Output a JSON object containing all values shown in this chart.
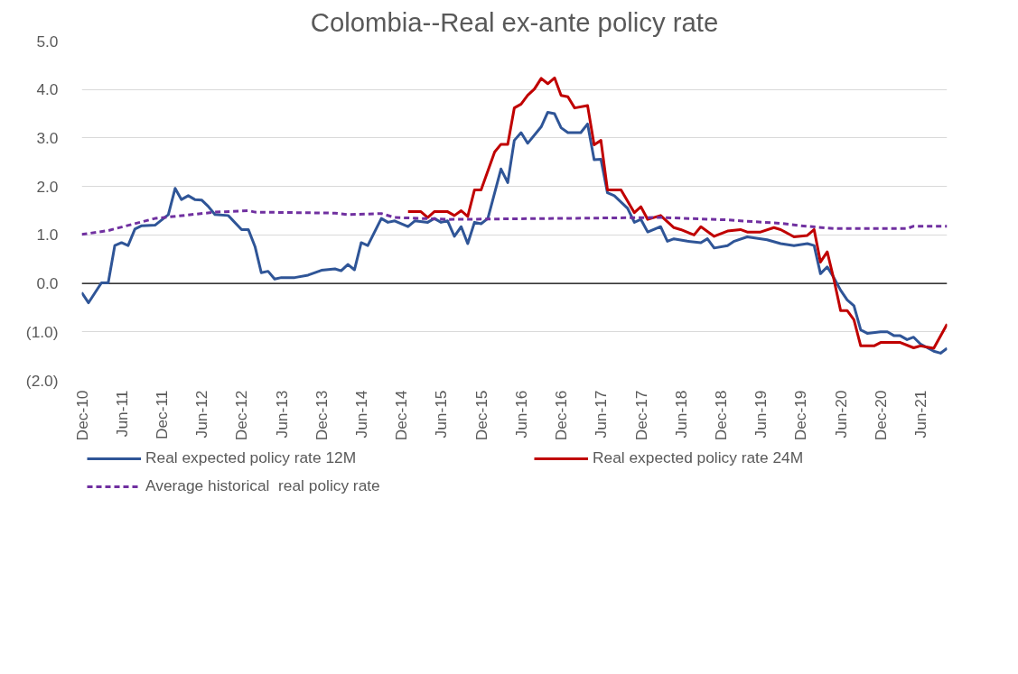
{
  "chart_data": {
    "type": "line",
    "title": "Colombia--Real ex-ante policy rate",
    "xlim": [
      "2010-12",
      "2021-10"
    ],
    "xticks": [
      {
        "value": "2010-12",
        "label": "Dec-10"
      },
      {
        "value": "2011-06",
        "label": "Jun-11"
      },
      {
        "value": "2011-12",
        "label": "Dec-11"
      },
      {
        "value": "2012-06",
        "label": "Jun-12"
      },
      {
        "value": "2012-12",
        "label": "Dec-12"
      },
      {
        "value": "2013-06",
        "label": "Jun-13"
      },
      {
        "value": "2013-12",
        "label": "Dec-13"
      },
      {
        "value": "2014-06",
        "label": "Jun-14"
      },
      {
        "value": "2014-12",
        "label": "Dec-14"
      },
      {
        "value": "2015-06",
        "label": "Jun-15"
      },
      {
        "value": "2015-12",
        "label": "Dec-15"
      },
      {
        "value": "2016-06",
        "label": "Jun-16"
      },
      {
        "value": "2016-12",
        "label": "Dec-16"
      },
      {
        "value": "2017-06",
        "label": "Jun-17"
      },
      {
        "value": "2017-12",
        "label": "Dec-17"
      },
      {
        "value": "2018-06",
        "label": "Jun-18"
      },
      {
        "value": "2018-12",
        "label": "Dec-18"
      },
      {
        "value": "2019-06",
        "label": "Jun-19"
      },
      {
        "value": "2019-12",
        "label": "Dec-19"
      },
      {
        "value": "2020-06",
        "label": "Jun-20"
      },
      {
        "value": "2020-12",
        "label": "Dec-20"
      },
      {
        "value": "2021-06",
        "label": "Jun-21"
      }
    ],
    "ylim": [
      -2,
      5
    ],
    "yticks": [
      {
        "value": -2,
        "label": "(2.0)"
      },
      {
        "value": -1,
        "label": "(1.0)"
      },
      {
        "value": 0,
        "label": "0.0"
      },
      {
        "value": 1,
        "label": "1.0"
      },
      {
        "value": 2,
        "label": "2.0"
      },
      {
        "value": 3,
        "label": "3.0"
      },
      {
        "value": 4,
        "label": "4.0"
      },
      {
        "value": 5,
        "label": "5.0"
      }
    ],
    "grid": "y",
    "legend": "bottom",
    "marker": "none",
    "ref_lines": [
      {
        "axis": "y",
        "value": 0,
        "color": "#000000"
      }
    ],
    "series": [
      {
        "name": "Real expected policy rate 12M",
        "color": "#2f5597",
        "line_style": "solid",
        "x": [
          "2010-12",
          "2011-01",
          "2011-03",
          "2011-04",
          "2011-05",
          "2011-06",
          "2011-07",
          "2011-08",
          "2011-09",
          "2011-11",
          "2012-01",
          "2012-02",
          "2012-03",
          "2012-04",
          "2012-05",
          "2012-06",
          "2012-07",
          "2012-08",
          "2012-10",
          "2012-12",
          "2013-01",
          "2013-02",
          "2013-03",
          "2013-04",
          "2013-05",
          "2013-06",
          "2013-08",
          "2013-10",
          "2013-12",
          "2014-02",
          "2014-03",
          "2014-04",
          "2014-05",
          "2014-06",
          "2014-07",
          "2014-09",
          "2014-10",
          "2014-11",
          "2015-01",
          "2015-02",
          "2015-04",
          "2015-05",
          "2015-06",
          "2015-07",
          "2015-08",
          "2015-09",
          "2015-10",
          "2015-11",
          "2015-12",
          "2016-01",
          "2016-03",
          "2016-04",
          "2016-05",
          "2016-06",
          "2016-07",
          "2016-09",
          "2016-10",
          "2016-11",
          "2016-12",
          "2017-01",
          "2017-03",
          "2017-04",
          "2017-05",
          "2017-06",
          "2017-07",
          "2017-08",
          "2017-10",
          "2017-11",
          "2017-12",
          "2018-01",
          "2018-03",
          "2018-04",
          "2018-05",
          "2018-07",
          "2018-09",
          "2018-10",
          "2018-11",
          "2019-01",
          "2019-02",
          "2019-04",
          "2019-07",
          "2019-09",
          "2019-11",
          "2020-01",
          "2020-02",
          "2020-03",
          "2020-04",
          "2020-05",
          "2020-06",
          "2020-07",
          "2020-08",
          "2020-09",
          "2020-10",
          "2020-12",
          "2021-01",
          "2021-02",
          "2021-03",
          "2021-04",
          "2021-05",
          "2021-06",
          "2021-08",
          "2021-09",
          "2021-10"
        ],
        "values": [
          -0.19,
          -0.4,
          0.01,
          0.01,
          0.78,
          0.84,
          0.78,
          1.12,
          1.19,
          1.2,
          1.42,
          1.96,
          1.73,
          1.81,
          1.73,
          1.72,
          1.59,
          1.42,
          1.4,
          1.11,
          1.11,
          0.75,
          0.22,
          0.25,
          0.09,
          0.12,
          0.12,
          0.17,
          0.27,
          0.3,
          0.26,
          0.39,
          0.28,
          0.84,
          0.78,
          1.34,
          1.26,
          1.29,
          1.17,
          1.29,
          1.26,
          1.34,
          1.26,
          1.29,
          0.97,
          1.17,
          0.82,
          1.26,
          1.23,
          1.34,
          2.36,
          2.08,
          2.95,
          3.11,
          2.89,
          3.23,
          3.53,
          3.5,
          3.21,
          3.11,
          3.11,
          3.29,
          2.55,
          2.56,
          1.87,
          1.81,
          1.55,
          1.26,
          1.32,
          1.06,
          1.17,
          0.87,
          0.92,
          0.87,
          0.84,
          0.92,
          0.73,
          0.78,
          0.87,
          0.96,
          0.9,
          0.82,
          0.78,
          0.82,
          0.78,
          0.2,
          0.34,
          0.12,
          -0.14,
          -0.34,
          -0.46,
          -0.96,
          -1.03,
          -1.0,
          -1.0,
          -1.08,
          -1.08,
          -1.16,
          -1.11,
          -1.25,
          -1.4,
          -1.44,
          -1.34
        ]
      },
      {
        "name": "Real expected policy rate 24M",
        "color": "#c00000",
        "line_style": "solid",
        "x": [
          "2015-01",
          "2015-03",
          "2015-04",
          "2015-05",
          "2015-07",
          "2015-08",
          "2015-09",
          "2015-10",
          "2015-11",
          "2015-12",
          "2016-02",
          "2016-03",
          "2016-04",
          "2016-05",
          "2016-06",
          "2016-07",
          "2016-08",
          "2016-09",
          "2016-10",
          "2016-11",
          "2016-12",
          "2017-01",
          "2017-02",
          "2017-04",
          "2017-05",
          "2017-06",
          "2017-07",
          "2017-09",
          "2017-11",
          "2017-12",
          "2018-01",
          "2018-03",
          "2018-05",
          "2018-06",
          "2018-08",
          "2018-09",
          "2018-11",
          "2019-01",
          "2019-03",
          "2019-04",
          "2019-06",
          "2019-08",
          "2019-09",
          "2019-11",
          "2020-01",
          "2020-02",
          "2020-03",
          "2020-04",
          "2020-05",
          "2020-06",
          "2020-07",
          "2020-08",
          "2020-09",
          "2020-11",
          "2020-12",
          "2021-03",
          "2021-05",
          "2021-06",
          "2021-08",
          "2021-10"
        ],
        "values": [
          1.48,
          1.48,
          1.36,
          1.48,
          1.48,
          1.4,
          1.5,
          1.38,
          1.93,
          1.93,
          2.71,
          2.87,
          2.87,
          3.62,
          3.7,
          3.88,
          4.01,
          4.23,
          4.12,
          4.24,
          3.88,
          3.85,
          3.62,
          3.67,
          2.86,
          2.95,
          1.93,
          1.93,
          1.46,
          1.58,
          1.32,
          1.4,
          1.15,
          1.11,
          1.0,
          1.17,
          0.97,
          1.08,
          1.11,
          1.06,
          1.06,
          1.15,
          1.11,
          0.96,
          0.99,
          1.11,
          0.44,
          0.65,
          0.09,
          -0.56,
          -0.56,
          -0.75,
          -1.29,
          -1.29,
          -1.22,
          -1.22,
          -1.33,
          -1.29,
          -1.34,
          -0.84
        ]
      },
      {
        "name": "Average historical  real policy rate",
        "color": "#7030a0",
        "line_style": "dashed",
        "x": [
          "2010-12",
          "2011-04",
          "2011-11",
          "2012-08",
          "2013-01",
          "2013-02",
          "2014-02",
          "2014-04",
          "2014-09",
          "2014-11",
          "2015-07",
          "2018-03",
          "2019-01",
          "2019-03",
          "2019-09",
          "2019-12",
          "2020-05",
          "2021-04",
          "2021-05",
          "2021-10"
        ],
        "values": [
          1.01,
          1.09,
          1.34,
          1.47,
          1.5,
          1.47,
          1.45,
          1.42,
          1.44,
          1.36,
          1.32,
          1.36,
          1.31,
          1.29,
          1.24,
          1.19,
          1.13,
          1.13,
          1.18,
          1.18
        ]
      }
    ]
  }
}
